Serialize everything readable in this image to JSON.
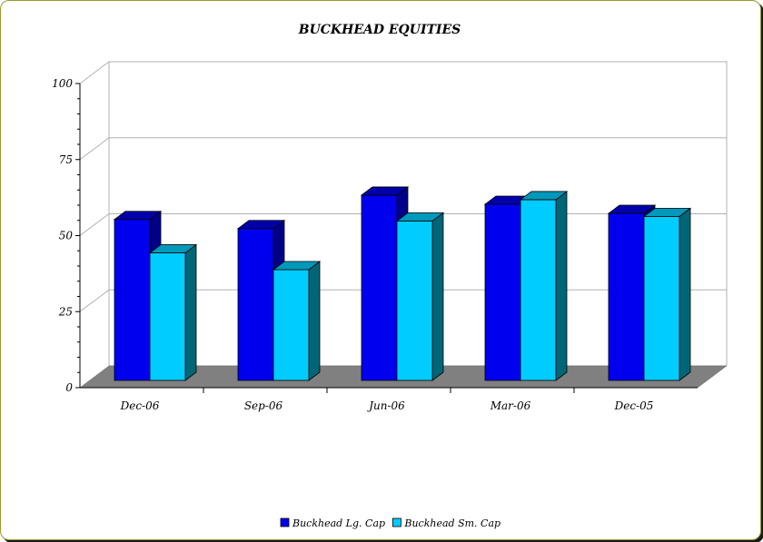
{
  "chart_data": {
    "type": "bar",
    "title": "BUCKHEAD EQUITIES",
    "xlabel": "",
    "ylabel": "",
    "categories": [
      "Dec-06",
      "Sep-06",
      "Jun-06",
      "Mar-06",
      "Dec-05"
    ],
    "series": [
      {
        "name": "Buckhead Lg. Cap",
        "values": [
          56.5,
          53.5,
          64.5,
          61.5,
          58.5
        ],
        "color": "#0000ee",
        "top_color": "#0000aa",
        "side_color": "#000088"
      },
      {
        "name": "Buckhead Sm. Cap",
        "values": [
          45.5,
          40,
          56,
          63,
          57.5
        ],
        "color": "#00ccff",
        "top_color": "#0099bb",
        "side_color": "#006677"
      }
    ],
    "ylim": [
      0,
      100
    ],
    "yticks": [
      0,
      25,
      50,
      75,
      100
    ],
    "grid": true,
    "legend": "bottom",
    "three_d": true,
    "floor_color": "#808080"
  }
}
